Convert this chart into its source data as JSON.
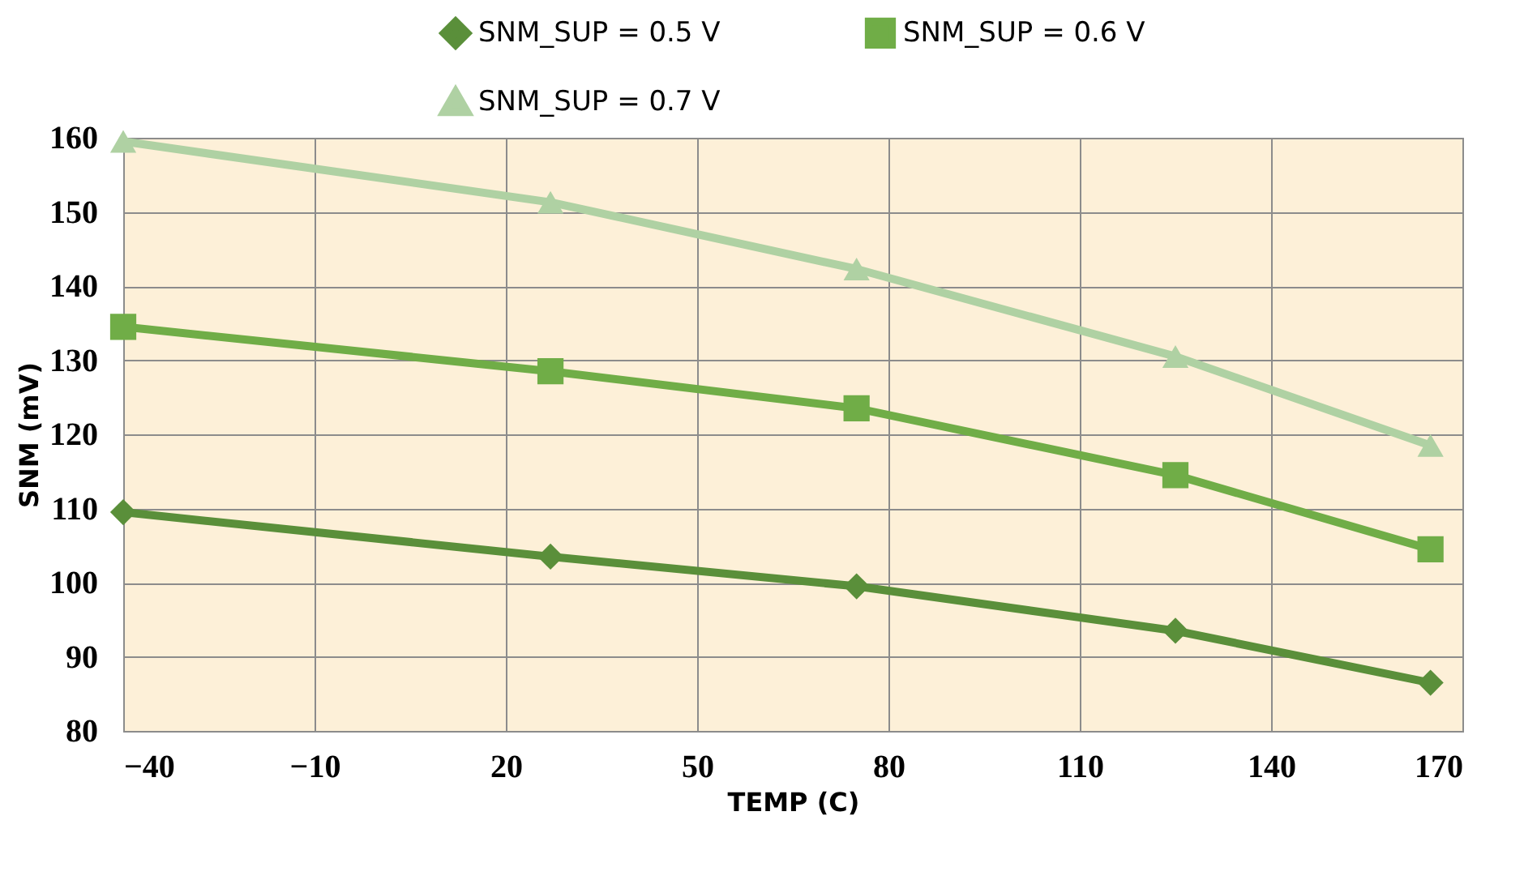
{
  "chart_data": {
    "type": "line",
    "xlabel": "TEMP (C)",
    "ylabel": "SNM (mV)",
    "x": [
      -40,
      27,
      75,
      125,
      165
    ],
    "xlim": [
      -40,
      170
    ],
    "xticks": [
      -40,
      -10,
      20,
      50,
      80,
      110,
      140,
      170
    ],
    "ylim": [
      80,
      160
    ],
    "yticks": [
      80,
      90,
      100,
      110,
      120,
      130,
      140,
      150,
      160
    ],
    "grid": true,
    "legend": "top",
    "line_style": "solid",
    "series": [
      {
        "name": "SNM_SUP = 0.5 V",
        "color": "#5a8f3a",
        "marker": "diamond",
        "values": [
          109.5,
          103.5,
          99.5,
          93.5,
          86.5
        ]
      },
      {
        "name": "SNM_SUP = 0.6 V",
        "color": "#70ad47",
        "marker": "square",
        "values": [
          134.5,
          128.5,
          123.5,
          114.5,
          104.5
        ]
      },
      {
        "name": "SNM_SUP = 0.7 V",
        "color": "#afd1a3",
        "marker": "triangle",
        "values": [
          159.5,
          151.3,
          142.3,
          130.5,
          118.5
        ]
      }
    ]
  }
}
